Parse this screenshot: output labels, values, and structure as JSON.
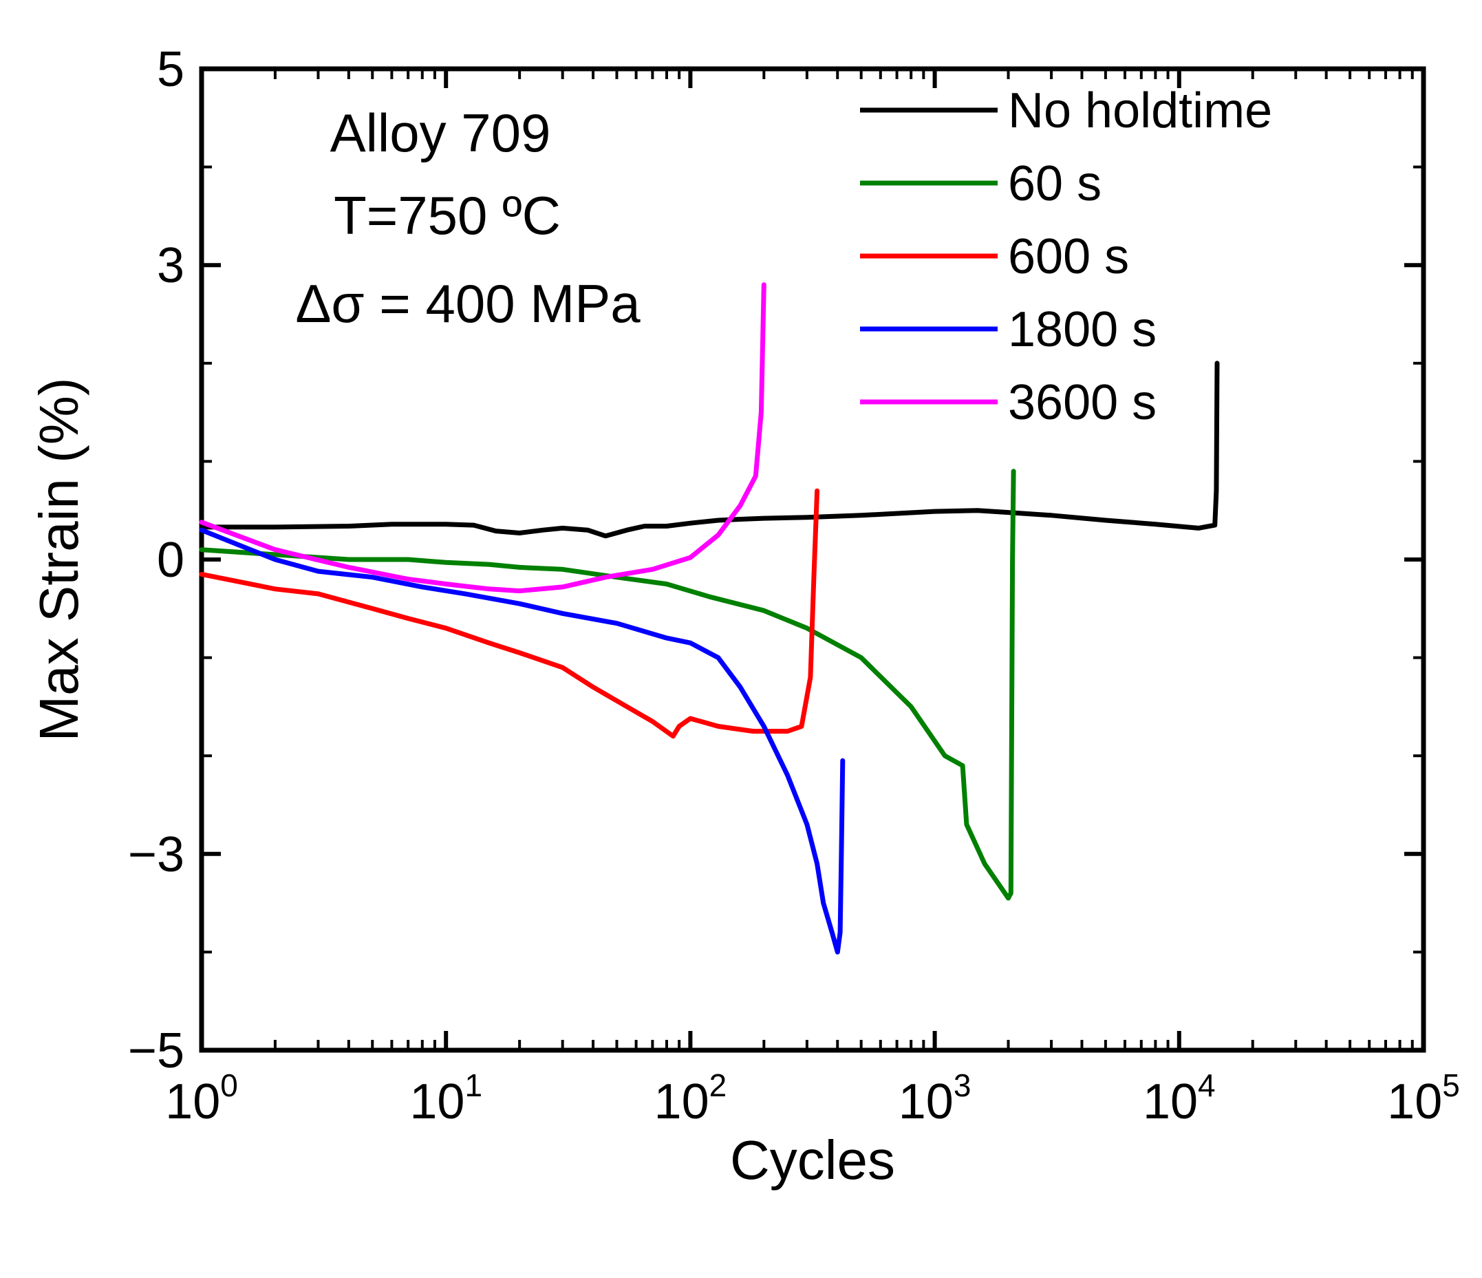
{
  "chart_data": {
    "type": "line",
    "xlabel": "Cycles",
    "ylabel": "Max Strain (%)",
    "xscale": "log",
    "xlim": [
      1,
      100000
    ],
    "ylim": [
      -5,
      5
    ],
    "x_ticks": [
      {
        "value": 1,
        "base": "10",
        "exp": "0"
      },
      {
        "value": 10,
        "base": "10",
        "exp": "1"
      },
      {
        "value": 100,
        "base": "10",
        "exp": "2"
      },
      {
        "value": 1000,
        "base": "10",
        "exp": "3"
      },
      {
        "value": 10000,
        "base": "10",
        "exp": "4"
      },
      {
        "value": 100000,
        "base": "10",
        "exp": "5"
      }
    ],
    "y_ticks": [
      {
        "value": 5,
        "label": "5"
      },
      {
        "value": 3,
        "label": "3"
      },
      {
        "value": 0,
        "label": "0"
      },
      {
        "value": -3,
        "label": "−3"
      },
      {
        "value": -5,
        "label": "−5"
      }
    ],
    "y_minor_ticks": [
      4,
      2,
      1,
      -1,
      -2,
      -4
    ],
    "grid": false,
    "legend_position": "top-right",
    "annotations": [
      "Alloy 709",
      "T=750 ºC",
      "Δσ = 400 MPa"
    ],
    "series": [
      {
        "name": "No holdtime",
        "color": "#000000",
        "points": [
          [
            1,
            0.33
          ],
          [
            2,
            0.33
          ],
          [
            4,
            0.34
          ],
          [
            6,
            0.36
          ],
          [
            10,
            0.36
          ],
          [
            13,
            0.35
          ],
          [
            16,
            0.29
          ],
          [
            20,
            0.27
          ],
          [
            25,
            0.3
          ],
          [
            30,
            0.32
          ],
          [
            38,
            0.3
          ],
          [
            45,
            0.24
          ],
          [
            55,
            0.3
          ],
          [
            65,
            0.34
          ],
          [
            80,
            0.34
          ],
          [
            100,
            0.37
          ],
          [
            130,
            0.4
          ],
          [
            160,
            0.41
          ],
          [
            200,
            0.42
          ],
          [
            300,
            0.43
          ],
          [
            500,
            0.45
          ],
          [
            1000,
            0.49
          ],
          [
            1500,
            0.5
          ],
          [
            2000,
            0.48
          ],
          [
            3000,
            0.45
          ],
          [
            5000,
            0.4
          ],
          [
            8000,
            0.36
          ],
          [
            12000,
            0.32
          ],
          [
            14000,
            0.35
          ],
          [
            14200,
            0.7
          ],
          [
            14300,
            2.0
          ]
        ]
      },
      {
        "name": "60 s",
        "color": "#008000",
        "points": [
          [
            1,
            0.1
          ],
          [
            2,
            0.05
          ],
          [
            4,
            0.0
          ],
          [
            7,
            0.0
          ],
          [
            10,
            -0.03
          ],
          [
            15,
            -0.05
          ],
          [
            20,
            -0.08
          ],
          [
            30,
            -0.1
          ],
          [
            50,
            -0.18
          ],
          [
            80,
            -0.25
          ],
          [
            120,
            -0.38
          ],
          [
            200,
            -0.52
          ],
          [
            300,
            -0.7
          ],
          [
            500,
            -1.0
          ],
          [
            800,
            -1.5
          ],
          [
            1100,
            -2.0
          ],
          [
            1300,
            -2.1
          ],
          [
            1350,
            -2.7
          ],
          [
            1600,
            -3.1
          ],
          [
            2000,
            -3.45
          ],
          [
            2050,
            -3.4
          ],
          [
            2080,
            0.0
          ],
          [
            2100,
            0.9
          ]
        ]
      },
      {
        "name": "600 s",
        "color": "#ff0000",
        "points": [
          [
            1,
            -0.15
          ],
          [
            2,
            -0.3
          ],
          [
            3,
            -0.35
          ],
          [
            5,
            -0.5
          ],
          [
            7,
            -0.6
          ],
          [
            10,
            -0.7
          ],
          [
            15,
            -0.85
          ],
          [
            20,
            -0.95
          ],
          [
            30,
            -1.1
          ],
          [
            40,
            -1.3
          ],
          [
            55,
            -1.5
          ],
          [
            70,
            -1.65
          ],
          [
            85,
            -1.8
          ],
          [
            90,
            -1.7
          ],
          [
            100,
            -1.62
          ],
          [
            130,
            -1.7
          ],
          [
            180,
            -1.75
          ],
          [
            250,
            -1.75
          ],
          [
            285,
            -1.7
          ],
          [
            310,
            -1.2
          ],
          [
            320,
            -0.2
          ],
          [
            330,
            0.7
          ]
        ]
      },
      {
        "name": "1800 s",
        "color": "#0000ff",
        "points": [
          [
            1,
            0.3
          ],
          [
            2,
            0.0
          ],
          [
            3,
            -0.12
          ],
          [
            5,
            -0.18
          ],
          [
            8,
            -0.28
          ],
          [
            12,
            -0.35
          ],
          [
            20,
            -0.45
          ],
          [
            30,
            -0.55
          ],
          [
            50,
            -0.65
          ],
          [
            80,
            -0.8
          ],
          [
            100,
            -0.85
          ],
          [
            130,
            -1.0
          ],
          [
            160,
            -1.3
          ],
          [
            200,
            -1.7
          ],
          [
            250,
            -2.2
          ],
          [
            300,
            -2.7
          ],
          [
            330,
            -3.1
          ],
          [
            350,
            -3.5
          ],
          [
            380,
            -3.8
          ],
          [
            400,
            -4.0
          ],
          [
            410,
            -3.8
          ],
          [
            415,
            -3.0
          ],
          [
            420,
            -2.05
          ]
        ]
      },
      {
        "name": "3600 s",
        "color": "#ff00ff",
        "points": [
          [
            1,
            0.38
          ],
          [
            2,
            0.1
          ],
          [
            4,
            -0.08
          ],
          [
            7,
            -0.2
          ],
          [
            10,
            -0.25
          ],
          [
            15,
            -0.3
          ],
          [
            20,
            -0.32
          ],
          [
            30,
            -0.28
          ],
          [
            45,
            -0.18
          ],
          [
            70,
            -0.1
          ],
          [
            100,
            0.02
          ],
          [
            130,
            0.25
          ],
          [
            160,
            0.55
          ],
          [
            185,
            0.85
          ],
          [
            195,
            1.5
          ],
          [
            200,
            2.8
          ]
        ]
      }
    ]
  }
}
